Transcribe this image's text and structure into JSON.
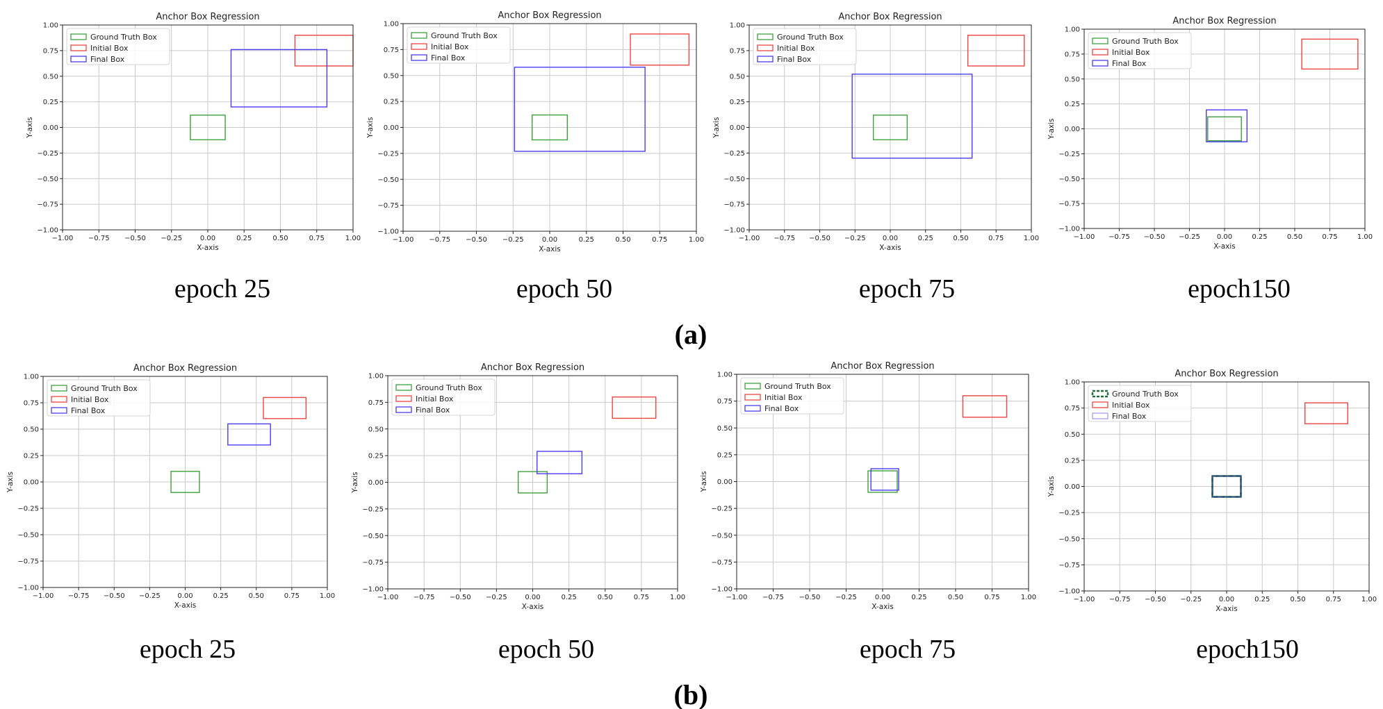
{
  "figure": {
    "panels": [
      {
        "label": "(a)",
        "captions": [
          "epoch 25",
          "epoch 50",
          "epoch 75",
          "epoch150"
        ]
      },
      {
        "label": "(b)",
        "captions": [
          "epoch 25",
          "epoch 50",
          "epoch 75",
          "epoch150"
        ]
      }
    ]
  },
  "colors": {
    "ground_truth": "#3fa03f",
    "initial": "#ee4444",
    "final": "#4a3cf0",
    "gt_dashed": "#1f6b3a",
    "final_dashed": "#234a70",
    "grid": "#c9c9c9"
  },
  "chart_data": [
    {
      "type": "scatter",
      "panel": "a",
      "epoch_caption": "epoch 25",
      "title": "Anchor Box Regression",
      "xlabel": "X-axis",
      "ylabel": "Y-axis",
      "xlim": [
        -1,
        1
      ],
      "ylim": [
        -1,
        1
      ],
      "grid": true,
      "legend_position": "top-left",
      "xticks": [
        "−1.00",
        "−0.75",
        "−0.50",
        "−0.25",
        "0.00",
        "0.25",
        "0.50",
        "0.75",
        "1.00"
      ],
      "yticks": [
        "1.00",
        "0.75",
        "0.50",
        "0.25",
        "0.00",
        "−0.25",
        "−0.50",
        "−0.75",
        "−1.00"
      ],
      "series": [
        {
          "name": "Ground Truth Box",
          "color_key": "ground_truth",
          "box": [
            -0.12,
            -0.12,
            0.12,
            0.12
          ]
        },
        {
          "name": "Initial Box",
          "color_key": "initial",
          "box": [
            0.6,
            0.6,
            1.0,
            0.9
          ]
        },
        {
          "name": "Final Box",
          "color_key": "final",
          "box": [
            0.16,
            0.2,
            0.82,
            0.76
          ]
        }
      ]
    },
    {
      "type": "scatter",
      "panel": "a",
      "epoch_caption": "epoch 50",
      "title": "Anchor Box Regression",
      "xlabel": "X-axis",
      "ylabel": "Y-axis",
      "xlim": [
        -1,
        1
      ],
      "ylim": [
        -1,
        1
      ],
      "grid": true,
      "legend_position": "top-left",
      "xticks": [
        "−1.00",
        "−0.75",
        "−0.50",
        "−0.25",
        "0.00",
        "0.25",
        "0.50",
        "0.75",
        "1.00"
      ],
      "yticks": [
        "1.00",
        "0.75",
        "0.50",
        "0.25",
        "0.00",
        "−0.25",
        "−0.50",
        "−0.75",
        "−1.00"
      ],
      "series": [
        {
          "name": "Ground Truth Box",
          "color_key": "ground_truth",
          "box": [
            -0.12,
            -0.12,
            0.12,
            0.12
          ]
        },
        {
          "name": "Initial Box",
          "color_key": "initial",
          "box": [
            0.55,
            0.6,
            0.95,
            0.9
          ]
        },
        {
          "name": "Final Box",
          "color_key": "final",
          "box": [
            -0.24,
            -0.23,
            0.65,
            0.58
          ]
        }
      ]
    },
    {
      "type": "scatter",
      "panel": "a",
      "epoch_caption": "epoch 75",
      "title": "Anchor Box Regression",
      "xlabel": "X-axis",
      "ylabel": "Y-axis",
      "xlim": [
        -1,
        1
      ],
      "ylim": [
        -1,
        1
      ],
      "grid": true,
      "legend_position": "top-left",
      "xticks": [
        "−1.00",
        "−0.75",
        "−0.50",
        "−0.25",
        "0.00",
        "0.25",
        "0.50",
        "0.75",
        "1.00"
      ],
      "yticks": [
        "1.00",
        "0.75",
        "0.50",
        "0.25",
        "0.00",
        "−0.25",
        "−0.50",
        "−0.75",
        "−1.00"
      ],
      "series": [
        {
          "name": "Ground Truth Box",
          "color_key": "ground_truth",
          "box": [
            -0.12,
            -0.12,
            0.12,
            0.12
          ]
        },
        {
          "name": "Initial Box",
          "color_key": "initial",
          "box": [
            0.55,
            0.6,
            0.95,
            0.9
          ]
        },
        {
          "name": "Final Box",
          "color_key": "final",
          "box": [
            -0.27,
            -0.3,
            0.58,
            0.52
          ]
        }
      ]
    },
    {
      "type": "scatter",
      "panel": "a",
      "epoch_caption": "epoch150",
      "title": "Anchor Box Regression",
      "xlabel": "X-axis",
      "ylabel": "Y-axis",
      "xlim": [
        -1,
        1
      ],
      "ylim": [
        -1,
        1
      ],
      "grid": true,
      "legend_position": "top-left",
      "xticks": [
        "−1.00",
        "−0.75",
        "−0.50",
        "−0.25",
        "0.00",
        "0.25",
        "0.50",
        "0.75",
        "1.00"
      ],
      "yticks": [
        "1.00",
        "0.75",
        "0.50",
        "0.25",
        "0.00",
        "−0.25",
        "−0.50",
        "−0.75",
        "−1.00"
      ],
      "series": [
        {
          "name": "Ground Truth Box",
          "color_key": "ground_truth",
          "box": [
            -0.12,
            -0.12,
            0.12,
            0.12
          ]
        },
        {
          "name": "Initial Box",
          "color_key": "initial",
          "box": [
            0.55,
            0.6,
            0.95,
            0.9
          ]
        },
        {
          "name": "Final Box",
          "color_key": "final",
          "box": [
            -0.13,
            -0.13,
            0.16,
            0.19
          ]
        }
      ]
    },
    {
      "type": "scatter",
      "panel": "b",
      "epoch_caption": "epoch 25",
      "title": "Anchor Box Regression",
      "xlabel": "X-axis",
      "ylabel": "Y-axis",
      "xlim": [
        -1,
        1
      ],
      "ylim": [
        -1,
        1
      ],
      "grid": true,
      "legend_position": "top-left",
      "xticks": [
        "−1.00",
        "−0.75",
        "−0.50",
        "−0.25",
        "0.00",
        "0.25",
        "0.50",
        "0.75",
        "1.00"
      ],
      "yticks": [
        "1.00",
        "0.75",
        "0.50",
        "0.25",
        "0.00",
        "−0.25",
        "−0.50",
        "−0.75",
        "−1.00"
      ],
      "series": [
        {
          "name": "Ground Truth Box",
          "color_key": "ground_truth",
          "box": [
            -0.1,
            -0.1,
            0.1,
            0.1
          ]
        },
        {
          "name": "Initial Box",
          "color_key": "initial",
          "box": [
            0.55,
            0.6,
            0.85,
            0.8
          ]
        },
        {
          "name": "Final Box",
          "color_key": "final",
          "box": [
            0.3,
            0.35,
            0.6,
            0.55
          ]
        }
      ]
    },
    {
      "type": "scatter",
      "panel": "b",
      "epoch_caption": "epoch 50",
      "title": "Anchor Box Regression",
      "xlabel": "X-axis",
      "ylabel": "Y-axis",
      "xlim": [
        -1,
        1
      ],
      "ylim": [
        -1,
        1
      ],
      "grid": true,
      "legend_position": "top-left",
      "xticks": [
        "−1.00",
        "−0.75",
        "−0.50",
        "−0.25",
        "0.00",
        "0.25",
        "0.50",
        "0.75",
        "1.00"
      ],
      "yticks": [
        "1.00",
        "0.75",
        "0.50",
        "0.25",
        "0.00",
        "−0.25",
        "−0.50",
        "−0.75",
        "−1.00"
      ],
      "series": [
        {
          "name": "Ground Truth Box",
          "color_key": "ground_truth",
          "box": [
            -0.1,
            -0.1,
            0.1,
            0.1
          ]
        },
        {
          "name": "Initial Box",
          "color_key": "initial",
          "box": [
            0.55,
            0.6,
            0.85,
            0.8
          ]
        },
        {
          "name": "Final Box",
          "color_key": "final",
          "box": [
            0.03,
            0.08,
            0.34,
            0.29
          ]
        }
      ]
    },
    {
      "type": "scatter",
      "panel": "b",
      "epoch_caption": "epoch 75",
      "title": "Anchor Box Regression",
      "xlabel": "X-axis",
      "ylabel": "Y-axis",
      "xlim": [
        -1,
        1
      ],
      "ylim": [
        -1,
        1
      ],
      "grid": true,
      "legend_position": "top-left",
      "xticks": [
        "−1.00",
        "−0.75",
        "−0.50",
        "−0.25",
        "0.00",
        "0.25",
        "0.50",
        "0.75",
        "1.00"
      ],
      "yticks": [
        "1.00",
        "0.75",
        "0.50",
        "0.25",
        "0.00",
        "−0.25",
        "−0.50",
        "−0.75",
        "−1.00"
      ],
      "series": [
        {
          "name": "Ground Truth Box",
          "color_key": "ground_truth",
          "box": [
            -0.1,
            -0.1,
            0.1,
            0.1
          ]
        },
        {
          "name": "Initial Box",
          "color_key": "initial",
          "box": [
            0.55,
            0.6,
            0.85,
            0.8
          ]
        },
        {
          "name": "Final Box",
          "color_key": "final",
          "box": [
            -0.08,
            -0.08,
            0.11,
            0.12
          ]
        }
      ]
    },
    {
      "type": "scatter",
      "panel": "b",
      "epoch_caption": "epoch150",
      "title": "Anchor Box Regression",
      "xlabel": "X-axis",
      "ylabel": "Y-axis",
      "xlim": [
        -1,
        1
      ],
      "ylim": [
        -1,
        1
      ],
      "grid": true,
      "legend_position": "top-left",
      "xticks": [
        "−1.00",
        "−0.75",
        "−0.50",
        "−0.25",
        "0.00",
        "0.25",
        "0.50",
        "0.75",
        "1.00"
      ],
      "yticks": [
        "1.00",
        "0.75",
        "0.50",
        "0.25",
        "0.00",
        "−0.25",
        "−0.50",
        "−0.75",
        "−1.00"
      ],
      "series": [
        {
          "name": "Ground Truth Box",
          "color_key": "gt_dashed",
          "dashed": true,
          "box": [
            -0.1,
            -0.1,
            0.1,
            0.1
          ]
        },
        {
          "name": "Initial Box",
          "color_key": "initial",
          "box": [
            0.55,
            0.6,
            0.85,
            0.8
          ]
        },
        {
          "name": "Final Box",
          "color_key": "final",
          "faded": true,
          "box": [
            -0.1,
            -0.1,
            0.1,
            0.1
          ]
        }
      ]
    }
  ]
}
